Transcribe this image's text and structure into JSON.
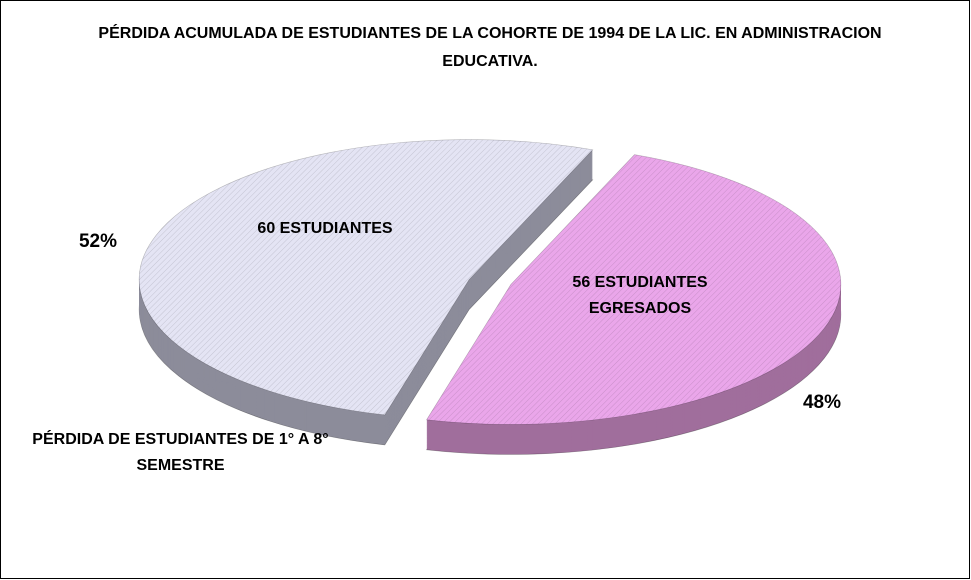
{
  "chart_data": {
    "type": "pie",
    "title": "PÉRDIDA ACUMULADA DE ESTUDIANTES DE LA COHORTE DE 1994 DE LA LIC. EN ADMINISTRACION EDUCATIVA.",
    "categories": [
      "PÉRDIDA DE ESTUDIANTES DE 1° A 8° SEMESTRE",
      "56 ESTUDIANTES EGRESADOS"
    ],
    "annotations": [
      "60 ESTUDIANTES"
    ],
    "values": [
      52,
      48
    ],
    "value_labels": [
      "52%",
      "48%"
    ],
    "colors": [
      "#e4e4f4",
      "#eaa6ea"
    ],
    "side_colors": [
      "#8c8c9a",
      "#a06e9c"
    ]
  }
}
